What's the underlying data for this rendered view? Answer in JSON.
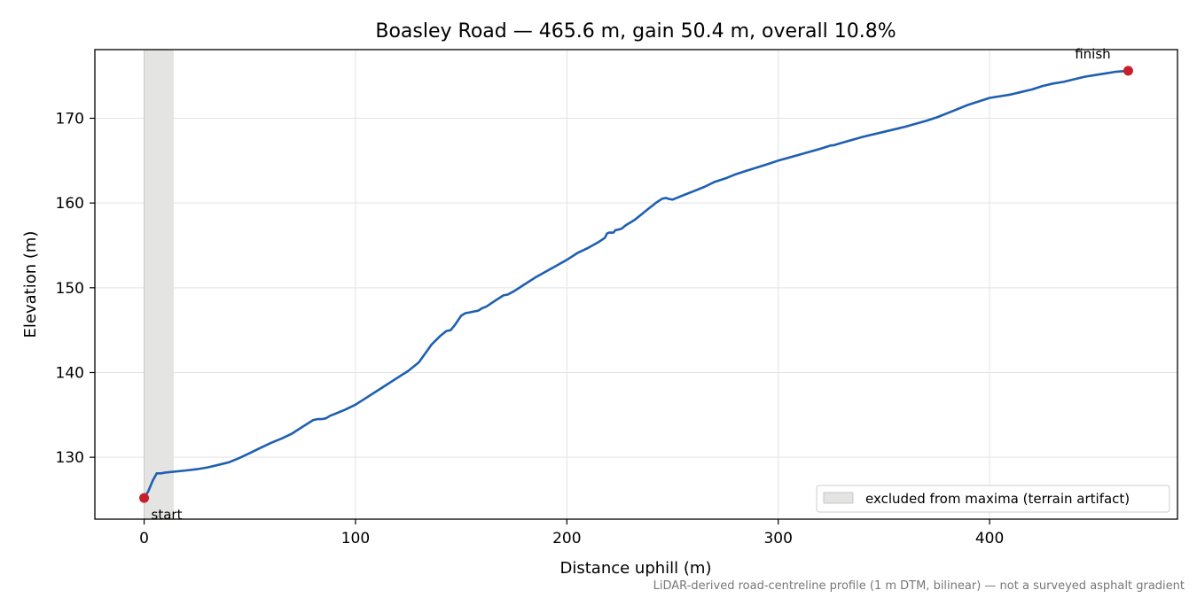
{
  "chart_data": {
    "type": "line",
    "title": "Boasley Road — 465.6 m, gain 50.4 m, overall 10.8%",
    "xlabel": "Distance uphill (m)",
    "ylabel": "Elevation (m)",
    "xlim": [
      -23.3,
      488.9
    ],
    "ylim": [
      122.7,
      178.1
    ],
    "xticks": [
      0,
      100,
      200,
      300,
      400
    ],
    "yticks": [
      130,
      140,
      150,
      160,
      170
    ],
    "grid": true,
    "legend_position": "lower-right",
    "series": [
      {
        "color": "#1f5fb0",
        "x": [
          0,
          2,
          4,
          6,
          8,
          10,
          14,
          20,
          25,
          30,
          35,
          40,
          45,
          50,
          55,
          60,
          65,
          70,
          75,
          80,
          82,
          84,
          86,
          88,
          90,
          95,
          100,
          105,
          110,
          115,
          120,
          125,
          130,
          132,
          134,
          136,
          140,
          143,
          145,
          147,
          150,
          152,
          154,
          156,
          158,
          160,
          162,
          165,
          170,
          172,
          175,
          180,
          185,
          190,
          195,
          200,
          205,
          210,
          215,
          218,
          219,
          220,
          222,
          223,
          225,
          226,
          228,
          230,
          232,
          235,
          238,
          240,
          242,
          245,
          247,
          248,
          250,
          255,
          260,
          265,
          270,
          275,
          280,
          285,
          290,
          295,
          300,
          310,
          320,
          325,
          326,
          330,
          340,
          350,
          360,
          370,
          375,
          380,
          385,
          390,
          395,
          400,
          405,
          410,
          415,
          420,
          425,
          430,
          435,
          440,
          445,
          450,
          455,
          460,
          465.6
        ],
        "y": [
          125.2,
          126.0,
          127.2,
          128.1,
          128.1,
          128.2,
          128.3,
          128.45,
          128.6,
          128.8,
          129.1,
          129.4,
          129.9,
          130.5,
          131.1,
          131.7,
          132.2,
          132.8,
          133.6,
          134.4,
          134.5,
          134.5,
          134.6,
          134.9,
          135.1,
          135.6,
          136.2,
          137.0,
          137.8,
          138.6,
          139.4,
          140.2,
          141.2,
          141.9,
          142.6,
          143.3,
          144.3,
          144.9,
          145.0,
          145.6,
          146.7,
          147.0,
          147.1,
          147.2,
          147.3,
          147.6,
          147.8,
          148.3,
          149.1,
          149.2,
          149.6,
          150.4,
          151.2,
          151.9,
          152.6,
          153.3,
          154.1,
          154.7,
          155.4,
          155.9,
          156.4,
          156.5,
          156.5,
          156.8,
          156.9,
          157.0,
          157.4,
          157.7,
          158.0,
          158.6,
          159.2,
          159.6,
          160.0,
          160.5,
          160.6,
          160.5,
          160.4,
          160.9,
          161.4,
          161.9,
          162.5,
          162.9,
          163.4,
          163.8,
          164.2,
          164.6,
          165.0,
          165.7,
          166.4,
          166.8,
          166.8,
          167.1,
          167.8,
          168.4,
          169.0,
          169.7,
          170.1,
          170.6,
          171.1,
          171.6,
          172.0,
          172.4,
          172.6,
          172.8,
          173.1,
          173.4,
          173.8,
          174.1,
          174.3,
          174.6,
          174.9,
          175.1,
          175.3,
          175.5,
          175.6
        ]
      }
    ],
    "points": [
      {
        "label": "start",
        "x": 0,
        "y": 125.2,
        "color": "#c8202a"
      },
      {
        "label": "finish",
        "x": 465.6,
        "y": 175.6,
        "color": "#c8202a"
      }
    ],
    "shaded_region": {
      "x_start": 0,
      "x_end": 14,
      "color": "#e4e4e2"
    },
    "legend": [
      "excluded from maxima (terrain artifact)"
    ],
    "footnote": "LiDAR-derived road-centreline profile (1 m DTM, bilinear) — not a surveyed asphalt gradient"
  }
}
